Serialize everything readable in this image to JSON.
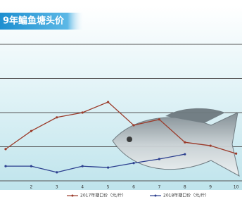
{
  "chart_data": {
    "type": "line",
    "title": "9年鳊鱼塘头价",
    "categories": [
      null,
      "2",
      "3",
      "4",
      "5",
      "6",
      "7",
      "8",
      "9",
      "10"
    ],
    "series": [
      {
        "name": "2017年塘口价（元/斤）",
        "color": "#9b3b2a",
        "values": [
          0.93,
          1.46,
          1.86,
          2.0,
          2.31,
          1.63,
          1.8,
          1.13,
          1.03,
          0.8
        ]
      },
      {
        "name": "2018年塘口价（元/斤）",
        "color": "#2c3f8f",
        "values": [
          0.43,
          0.43,
          0.25,
          0.43,
          0.39,
          0.52,
          0.64,
          0.78,
          null,
          null
        ]
      }
    ],
    "ylim": [
      0,
      4.3
    ],
    "yticks": [
      0,
      1,
      2,
      3,
      4
    ],
    "grid": true
  }
}
